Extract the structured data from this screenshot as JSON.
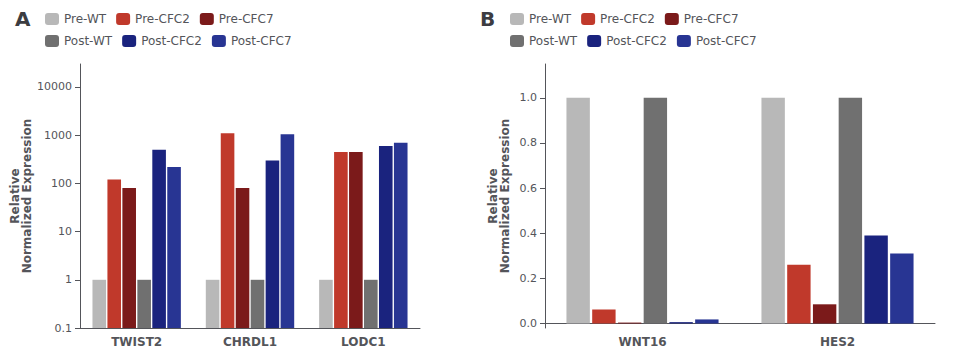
{
  "chart_data": [
    {
      "type": "bar",
      "title": "A",
      "ylabel": "Relative\nNormalized Expression",
      "categories": [
        "TWIST2",
        "CHRDL1",
        "LODC1"
      ],
      "series": [
        {
          "name": "Pre-WT",
          "color": "#b8b8b8",
          "values": [
            1,
            1,
            1
          ]
        },
        {
          "name": "Pre-CFC2",
          "color": "#c0392b",
          "values": [
            120,
            1100,
            450
          ]
        },
        {
          "name": "Pre-CFC7",
          "color": "#7b1a1a",
          "values": [
            80,
            80,
            450
          ]
        },
        {
          "name": "Post-WT",
          "color": "#707070",
          "values": [
            1,
            1,
            1
          ]
        },
        {
          "name": "Post-CFC2",
          "color": "#1a237e",
          "values": [
            500,
            300,
            600
          ]
        },
        {
          "name": "Post-CFC7",
          "color": "#283593",
          "values": [
            220,
            1050,
            700
          ]
        }
      ],
      "log": "y",
      "ylim": [
        0.1,
        30000
      ],
      "yticks": [
        0.1,
        1,
        10,
        100,
        1000,
        10000
      ],
      "grid": false,
      "legend": "upper left"
    },
    {
      "type": "bar",
      "title": "B",
      "ylabel": "Relative\nNormalized Expression",
      "categories": [
        "WNT16",
        "HES2"
      ],
      "series": [
        {
          "name": "Pre-WT",
          "color": "#b8b8b8",
          "values": [
            1.0,
            1.0
          ]
        },
        {
          "name": "Pre-CFC2",
          "color": "#c0392b",
          "values": [
            0.062,
            0.26
          ]
        },
        {
          "name": "Pre-CFC7",
          "color": "#7b1a1a",
          "values": [
            0.004,
            0.085
          ]
        },
        {
          "name": "Post-WT",
          "color": "#707070",
          "values": [
            1.0,
            1.0
          ]
        },
        {
          "name": "Post-CFC2",
          "color": "#1a237e",
          "values": [
            0.006,
            0.39
          ]
        },
        {
          "name": "Post-CFC7",
          "color": "#283593",
          "values": [
            0.018,
            0.31
          ]
        }
      ],
      "ylim": [
        -0.02,
        1.15
      ],
      "yticks": [
        {
          "value": 0,
          "label": "0.0"
        },
        0.2,
        0.4,
        0.6,
        0.8,
        {
          "value": 1,
          "label": "1.0"
        }
      ],
      "grid": false,
      "legend": "upper left"
    }
  ]
}
